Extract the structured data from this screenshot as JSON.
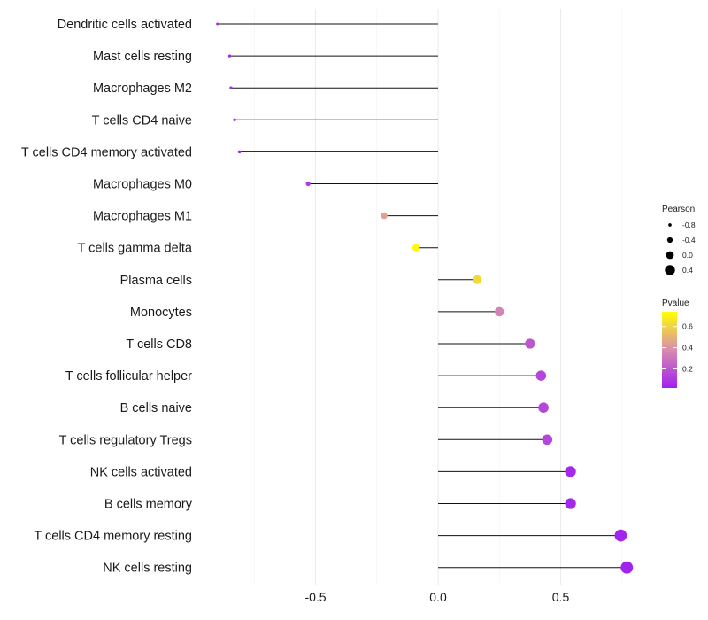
{
  "chart_data": {
    "type": "lollipop",
    "x_ticks": [
      -0.5,
      0.0,
      0.5
    ],
    "x_tick_labels": [
      "-0.5",
      "0.0",
      "0.5"
    ],
    "xlim": [
      -0.9,
      0.8
    ],
    "categories": [
      "Dendritic cells activated",
      "Mast cells resting",
      "Macrophages M2",
      "T cells CD4 naive",
      "T cells CD4 memory activated",
      "Macrophages M0",
      "Macrophages M1",
      "T cells gamma delta",
      "Plasma cells",
      "Monocytes",
      "T cells CD8",
      "T cells follicular helper",
      "B cells naive",
      "T cells regulatory  Tregs ",
      "NK cells activated",
      "B cells memory",
      "T cells CD4 memory resting",
      "NK cells resting"
    ],
    "pearson": [
      -0.9,
      -0.85,
      -0.845,
      -0.83,
      -0.81,
      -0.53,
      -0.22,
      -0.09,
      0.16,
      0.25,
      0.375,
      0.42,
      0.43,
      0.445,
      0.54,
      0.54,
      0.745,
      0.77
    ],
    "pvalue": [
      0.05,
      0.04,
      0.05,
      0.05,
      0.05,
      0.12,
      0.45,
      0.72,
      0.62,
      0.35,
      0.2,
      0.15,
      0.15,
      0.15,
      0.05,
      0.05,
      0.03,
      0.03
    ],
    "legend_size": {
      "title": "Pearson",
      "values": [
        -0.8,
        -0.4,
        0.0,
        0.4
      ],
      "labels": [
        "-0.8",
        "-0.4",
        "0.0",
        "0.4"
      ]
    },
    "legend_color": {
      "title": "Pvalue",
      "ticks": [
        0.2,
        0.4,
        0.6
      ],
      "labels": [
        "0.2",
        "0.4",
        "0.6"
      ],
      "range": [
        0.02,
        0.74
      ],
      "low_color": "#a020f0",
      "high_color": "#ffff00"
    }
  }
}
